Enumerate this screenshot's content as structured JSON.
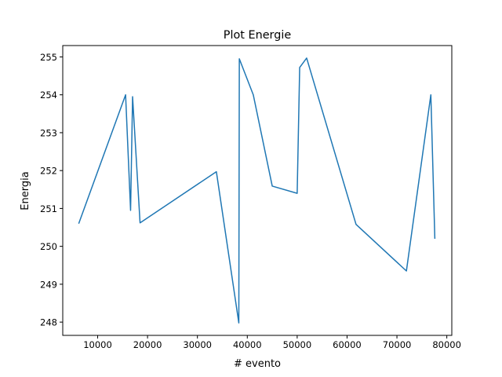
{
  "chart_data": {
    "type": "line",
    "title": "Plot Energie",
    "xlabel": "# evento",
    "ylabel": "Energia",
    "xlim": [
      3000,
      81000
    ],
    "ylim": [
      247.65,
      255.3
    ],
    "xticks": [
      10000,
      20000,
      30000,
      40000,
      50000,
      60000,
      70000,
      80000
    ],
    "yticks": [
      248,
      249,
      250,
      251,
      252,
      253,
      254,
      255
    ],
    "grid": false,
    "series": [
      {
        "color": "#1f77b4",
        "x": [
          6200,
          15600,
          16600,
          17000,
          18500,
          33800,
          38300,
          38400,
          41200,
          45000,
          50000,
          50500,
          51900,
          61800,
          71900,
          76800,
          77600
        ],
        "y": [
          250.6,
          254.0,
          250.95,
          253.95,
          250.62,
          251.97,
          247.98,
          254.95,
          254.0,
          251.59,
          251.4,
          254.72,
          254.97,
          250.58,
          249.35,
          254.0,
          250.2
        ]
      }
    ]
  }
}
